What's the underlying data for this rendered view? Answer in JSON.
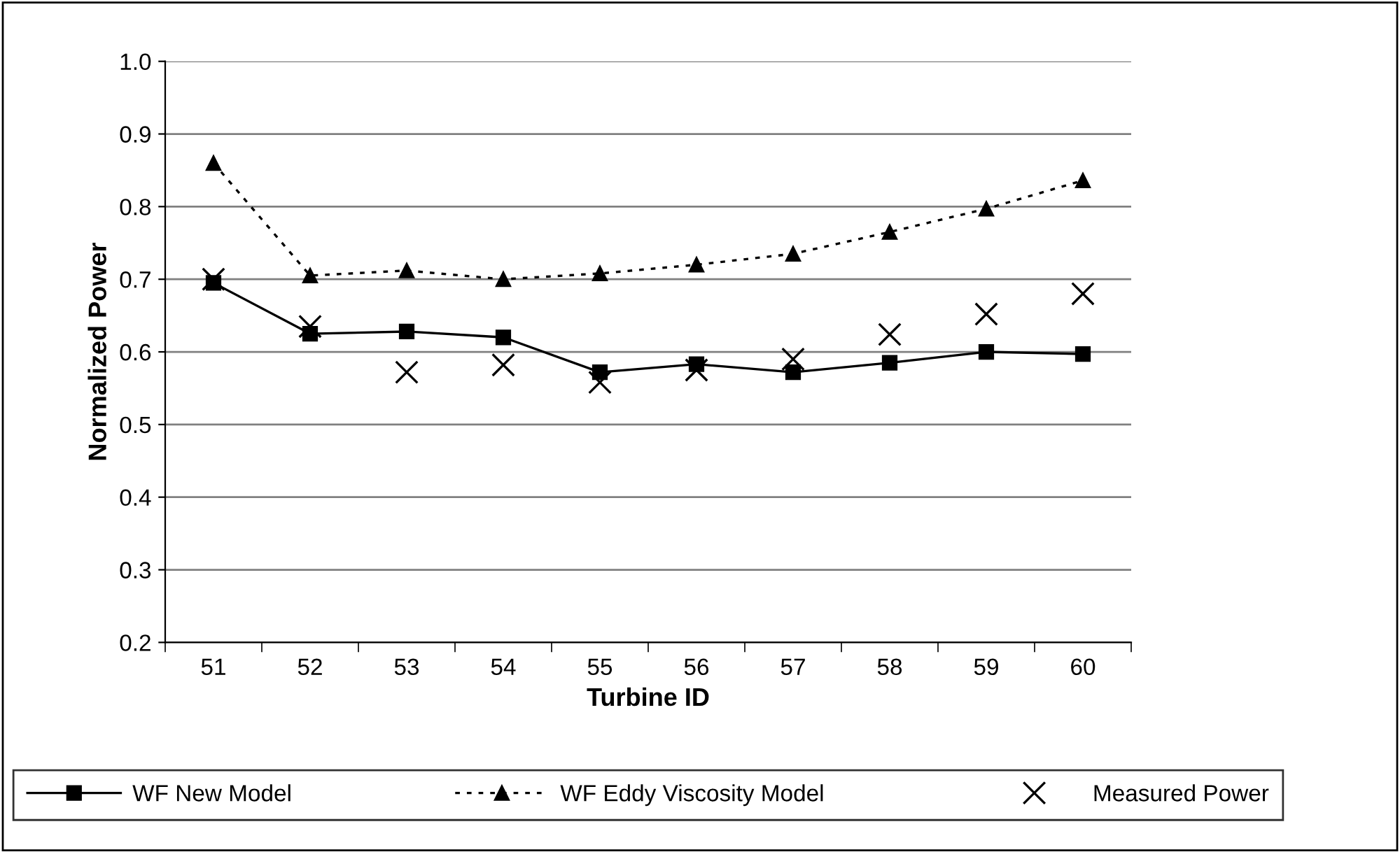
{
  "chart_data": {
    "type": "line",
    "xlabel": "Turbine ID",
    "ylabel": "Normalized Power",
    "categories": [
      "51",
      "52",
      "53",
      "54",
      "55",
      "56",
      "57",
      "58",
      "59",
      "60"
    ],
    "series": [
      {
        "name": "WF New Model",
        "color": "#000000",
        "marker": "square",
        "line_style": "solid",
        "values": [
          0.695,
          0.625,
          0.628,
          0.62,
          0.572,
          0.583,
          0.572,
          0.585,
          0.6,
          0.597
        ]
      },
      {
        "name": "WF Eddy Viscosity Model",
        "color": "#000000",
        "marker": "triangle",
        "line_style": "dotted",
        "values": [
          0.86,
          0.705,
          0.712,
          0.7,
          0.708,
          0.72,
          0.735,
          0.765,
          0.797,
          0.836
        ]
      },
      {
        "name": "Measured Power",
        "type": "scatter",
        "color": "#000000",
        "marker": "cross",
        "values": [
          0.7,
          0.635,
          0.572,
          0.582,
          0.558,
          0.575,
          0.59,
          0.624,
          0.652,
          0.68
        ]
      }
    ],
    "ylim": [
      0.2,
      1.0
    ],
    "yticks": [
      0.2,
      0.3,
      0.4,
      0.5,
      0.6,
      0.7,
      0.8,
      0.9,
      {
        "value": 1.0,
        "label": "1.0"
      }
    ],
    "grid": "y",
    "legend": "bottom"
  }
}
